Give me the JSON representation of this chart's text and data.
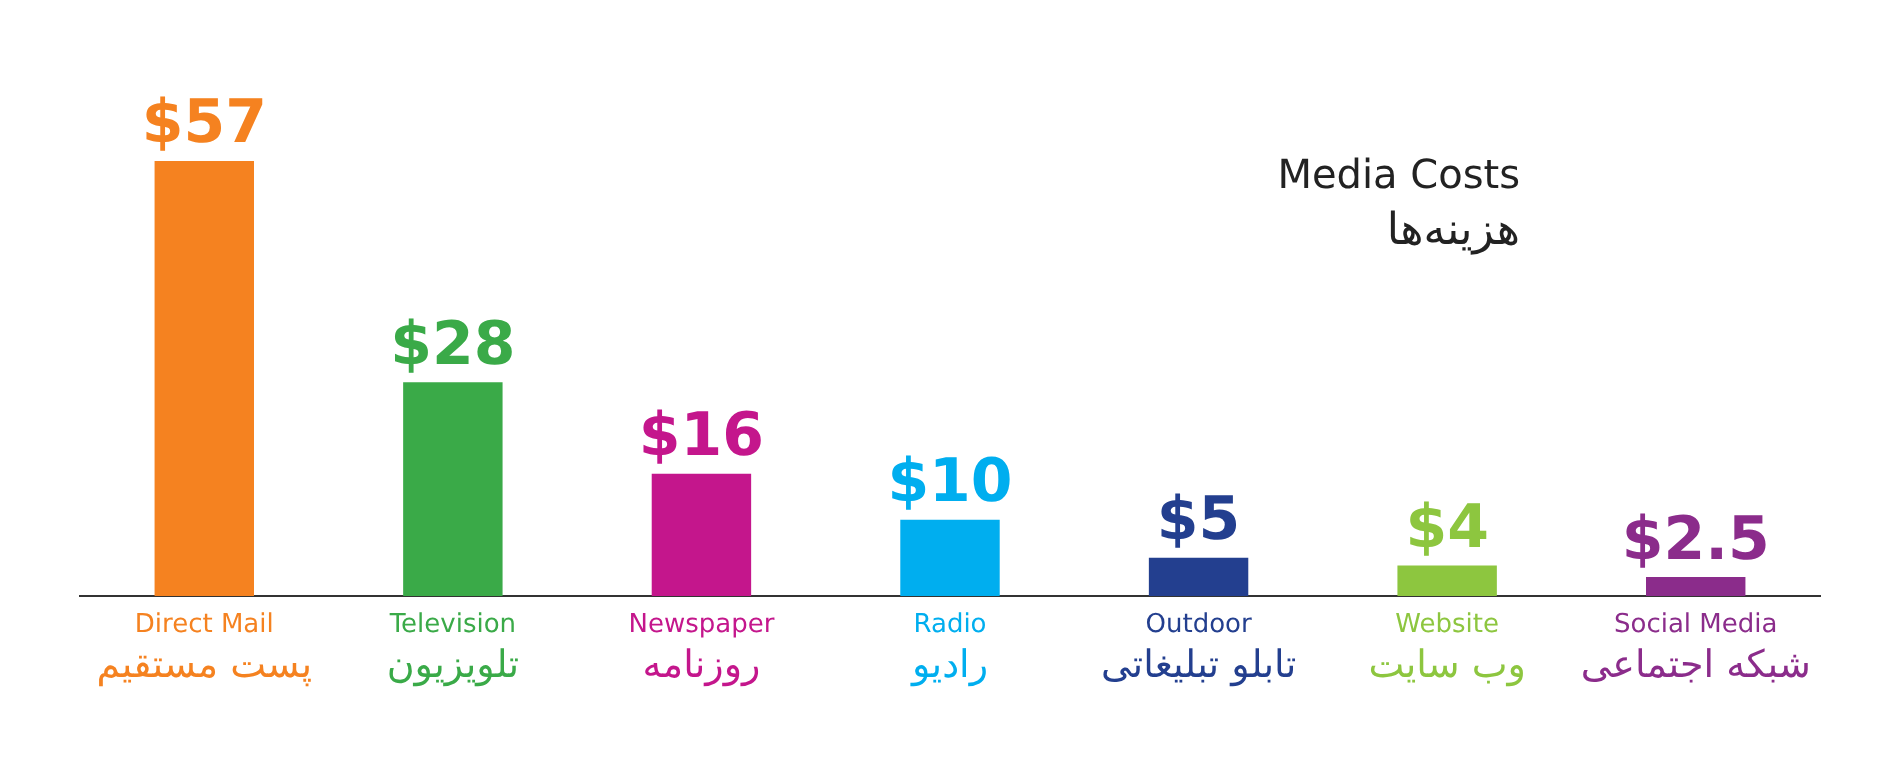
{
  "chart_data": {
    "type": "bar",
    "title": "Media Costs",
    "subtitle": "هزینه‌ها",
    "categories": [
      "Direct Mail\nپست مستقیم",
      "Television\nتلویزیون",
      "Newspaper\nروزنامه",
      "Radio\nرادیو",
      "Outdoor\nتابلو تبلیغاتی",
      "Website\nوب سایت",
      "Social Media\nشبکه اجتماعی"
    ],
    "values": [
      57,
      28,
      16,
      10,
      5,
      4,
      2.5
    ],
    "colors": [
      "#f58220",
      "#3aaa48",
      "#c4168c",
      "#00aeef",
      "#233f8f",
      "#8dc63f",
      "#8b2c8b"
    ],
    "value_labels": [
      "$57",
      "$28",
      "$16",
      "$10",
      "$5",
      "$4",
      "$2.5"
    ],
    "grid": false,
    "legend": false
  }
}
